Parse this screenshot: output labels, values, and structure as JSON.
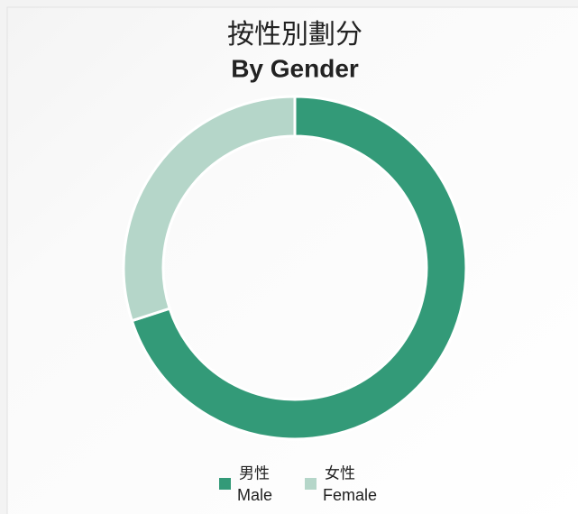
{
  "chart_data": {
    "type": "donut",
    "title": "按性別劃分",
    "subtitle": "By Gender",
    "categories": [
      "Male",
      "Female"
    ],
    "categories_zh": [
      "男性",
      "女性"
    ],
    "values": [
      70,
      30
    ],
    "colors": [
      "#339a78",
      "#b5d6c9"
    ]
  }
}
